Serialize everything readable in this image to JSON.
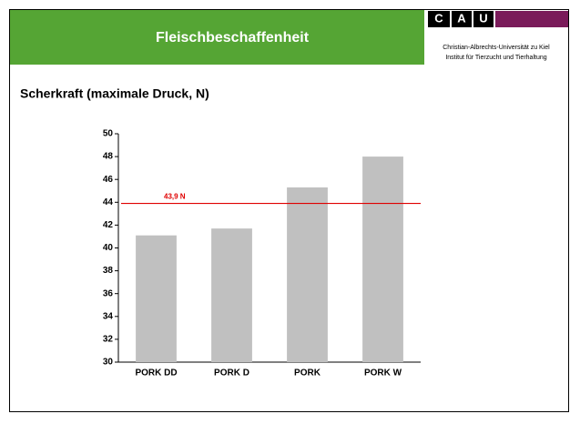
{
  "header": {
    "title": "Fleischbeschaffenheit",
    "logo": [
      "C",
      "A",
      "U"
    ],
    "university": "Christian-Albrechts-Universität zu Kiel",
    "institute": "Institut für Tierzucht und Tierhaltung"
  },
  "chart_data": {
    "type": "bar",
    "title": "Scherkraft (maximale Druck, N)",
    "categories": [
      "PORK DD",
      "PORK D",
      "PORK",
      "PORK W"
    ],
    "values": [
      41.1,
      41.7,
      45.3,
      48.0
    ],
    "color": "#c0c0c0",
    "ylim": [
      30,
      50
    ],
    "yticks": [
      30,
      32,
      34,
      36,
      38,
      40,
      42,
      44,
      46,
      48,
      50
    ],
    "reference_line": {
      "value": 43.9,
      "label": "43,9 N",
      "color": "#e00000"
    }
  }
}
